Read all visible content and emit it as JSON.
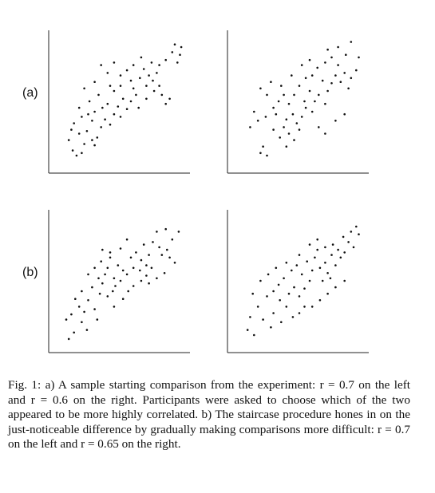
{
  "rows": [
    {
      "label": "(a)"
    },
    {
      "label": "(b)"
    }
  ],
  "caption": "Fig. 1: a) A sample starting comparison from the experiment: r = 0.7 on the left and r = 0.6 on the right. Participants were asked to choose which of the two appeared to be more highly correlated. b) The staircase procedure hones in on the just-noticeable difference by gradually making comparisons more difficult: r = 0.7 on the left and r = 0.65 on the right.",
  "chart_data": [
    {
      "type": "scatter",
      "panel": "(a) left",
      "r": 0.7,
      "xlim": [
        0,
        1
      ],
      "ylim": [
        0,
        1
      ],
      "points": [
        [
          0.13,
          0.12
        ],
        [
          0.16,
          0.08
        ],
        [
          0.2,
          0.1
        ],
        [
          0.22,
          0.17
        ],
        [
          0.28,
          0.2
        ],
        [
          0.3,
          0.16
        ],
        [
          0.18,
          0.25
        ],
        [
          0.24,
          0.27
        ],
        [
          0.32,
          0.22
        ],
        [
          0.35,
          0.3
        ],
        [
          0.14,
          0.33
        ],
        [
          0.2,
          0.38
        ],
        [
          0.28,
          0.35
        ],
        [
          0.38,
          0.36
        ],
        [
          0.42,
          0.32
        ],
        [
          0.45,
          0.4
        ],
        [
          0.3,
          0.42
        ],
        [
          0.36,
          0.45
        ],
        [
          0.4,
          0.48
        ],
        [
          0.48,
          0.46
        ],
        [
          0.5,
          0.38
        ],
        [
          0.52,
          0.52
        ],
        [
          0.55,
          0.44
        ],
        [
          0.58,
          0.5
        ],
        [
          0.26,
          0.5
        ],
        [
          0.33,
          0.55
        ],
        [
          0.22,
          0.6
        ],
        [
          0.45,
          0.58
        ],
        [
          0.5,
          0.62
        ],
        [
          0.6,
          0.6
        ],
        [
          0.62,
          0.55
        ],
        [
          0.65,
          0.68
        ],
        [
          0.7,
          0.62
        ],
        [
          0.72,
          0.7
        ],
        [
          0.68,
          0.75
        ],
        [
          0.75,
          0.66
        ],
        [
          0.78,
          0.72
        ],
        [
          0.8,
          0.62
        ],
        [
          0.82,
          0.55
        ],
        [
          0.85,
          0.48
        ],
        [
          0.88,
          0.52
        ],
        [
          0.6,
          0.78
        ],
        [
          0.66,
          0.84
        ],
        [
          0.74,
          0.8
        ],
        [
          0.8,
          0.78
        ],
        [
          0.85,
          0.82
        ],
        [
          0.9,
          0.88
        ],
        [
          0.94,
          0.8
        ],
        [
          0.96,
          0.86
        ],
        [
          0.92,
          0.94
        ],
        [
          0.97,
          0.92
        ],
        [
          0.4,
          0.72
        ],
        [
          0.5,
          0.7
        ],
        [
          0.35,
          0.78
        ],
        [
          0.45,
          0.8
        ],
        [
          0.55,
          0.74
        ],
        [
          0.3,
          0.65
        ],
        [
          0.42,
          0.62
        ],
        [
          0.58,
          0.66
        ],
        [
          0.64,
          0.45
        ],
        [
          0.7,
          0.52
        ],
        [
          0.76,
          0.58
        ],
        [
          0.18,
          0.45
        ],
        [
          0.25,
          0.4
        ],
        [
          0.1,
          0.2
        ],
        [
          0.12,
          0.28
        ]
      ]
    },
    {
      "type": "scatter",
      "panel": "(a) right",
      "r": 0.6,
      "xlim": [
        0,
        1
      ],
      "ylim": [
        0,
        1
      ],
      "points": [
        [
          0.2,
          0.1
        ],
        [
          0.22,
          0.15
        ],
        [
          0.25,
          0.08
        ],
        [
          0.12,
          0.3
        ],
        [
          0.18,
          0.35
        ],
        [
          0.3,
          0.28
        ],
        [
          0.35,
          0.22
        ],
        [
          0.38,
          0.3
        ],
        [
          0.42,
          0.25
        ],
        [
          0.4,
          0.36
        ],
        [
          0.45,
          0.4
        ],
        [
          0.48,
          0.33
        ],
        [
          0.5,
          0.28
        ],
        [
          0.52,
          0.38
        ],
        [
          0.55,
          0.45
        ],
        [
          0.3,
          0.45
        ],
        [
          0.34,
          0.5
        ],
        [
          0.38,
          0.55
        ],
        [
          0.42,
          0.48
        ],
        [
          0.25,
          0.55
        ],
        [
          0.2,
          0.6
        ],
        [
          0.28,
          0.65
        ],
        [
          0.6,
          0.42
        ],
        [
          0.62,
          0.5
        ],
        [
          0.58,
          0.58
        ],
        [
          0.65,
          0.55
        ],
        [
          0.7,
          0.48
        ],
        [
          0.72,
          0.58
        ],
        [
          0.75,
          0.64
        ],
        [
          0.68,
          0.66
        ],
        [
          0.6,
          0.7
        ],
        [
          0.55,
          0.68
        ],
        [
          0.5,
          0.62
        ],
        [
          0.78,
          0.7
        ],
        [
          0.82,
          0.65
        ],
        [
          0.85,
          0.72
        ],
        [
          0.88,
          0.6
        ],
        [
          0.9,
          0.68
        ],
        [
          0.94,
          0.74
        ],
        [
          0.8,
          0.78
        ],
        [
          0.75,
          0.84
        ],
        [
          0.7,
          0.8
        ],
        [
          0.72,
          0.9
        ],
        [
          0.8,
          0.92
        ],
        [
          0.86,
          0.86
        ],
        [
          0.9,
          0.96
        ],
        [
          0.96,
          0.84
        ],
        [
          0.65,
          0.3
        ],
        [
          0.7,
          0.25
        ],
        [
          0.78,
          0.35
        ],
        [
          0.85,
          0.4
        ],
        [
          0.46,
          0.2
        ],
        [
          0.4,
          0.15
        ],
        [
          0.32,
          0.4
        ],
        [
          0.36,
          0.62
        ],
        [
          0.44,
          0.7
        ],
        [
          0.52,
          0.78
        ],
        [
          0.58,
          0.82
        ],
        [
          0.64,
          0.76
        ],
        [
          0.15,
          0.42
        ],
        [
          0.24,
          0.38
        ],
        [
          0.46,
          0.55
        ],
        [
          0.54,
          0.5
        ]
      ]
    },
    {
      "type": "scatter",
      "panel": "(b) left",
      "r": 0.7,
      "xlim": [
        0,
        1
      ],
      "ylim": [
        0,
        1
      ],
      "points": [
        [
          0.1,
          0.05
        ],
        [
          0.14,
          0.1
        ],
        [
          0.08,
          0.2
        ],
        [
          0.12,
          0.24
        ],
        [
          0.2,
          0.18
        ],
        [
          0.24,
          0.12
        ],
        [
          0.18,
          0.3
        ],
        [
          0.25,
          0.35
        ],
        [
          0.3,
          0.28
        ],
        [
          0.34,
          0.4
        ],
        [
          0.2,
          0.42
        ],
        [
          0.28,
          0.45
        ],
        [
          0.36,
          0.48
        ],
        [
          0.4,
          0.38
        ],
        [
          0.44,
          0.42
        ],
        [
          0.38,
          0.55
        ],
        [
          0.45,
          0.52
        ],
        [
          0.5,
          0.5
        ],
        [
          0.52,
          0.58
        ],
        [
          0.48,
          0.62
        ],
        [
          0.55,
          0.55
        ],
        [
          0.6,
          0.6
        ],
        [
          0.3,
          0.6
        ],
        [
          0.35,
          0.65
        ],
        [
          0.42,
          0.68
        ],
        [
          0.25,
          0.55
        ],
        [
          0.58,
          0.68
        ],
        [
          0.62,
          0.72
        ],
        [
          0.66,
          0.66
        ],
        [
          0.7,
          0.62
        ],
        [
          0.72,
          0.7
        ],
        [
          0.74,
          0.6
        ],
        [
          0.68,
          0.78
        ],
        [
          0.75,
          0.8
        ],
        [
          0.8,
          0.76
        ],
        [
          0.82,
          0.7
        ],
        [
          0.86,
          0.74
        ],
        [
          0.88,
          0.68
        ],
        [
          0.92,
          0.64
        ],
        [
          0.9,
          0.82
        ],
        [
          0.95,
          0.88
        ],
        [
          0.85,
          0.9
        ],
        [
          0.78,
          0.88
        ],
        [
          0.55,
          0.82
        ],
        [
          0.5,
          0.75
        ],
        [
          0.6,
          0.46
        ],
        [
          0.66,
          0.5
        ],
        [
          0.72,
          0.48
        ],
        [
          0.78,
          0.52
        ],
        [
          0.84,
          0.56
        ],
        [
          0.45,
          0.3
        ],
        [
          0.52,
          0.36
        ],
        [
          0.56,
          0.42
        ],
        [
          0.4,
          0.6
        ],
        [
          0.33,
          0.52
        ],
        [
          0.15,
          0.36
        ],
        [
          0.22,
          0.26
        ],
        [
          0.32,
          0.2
        ],
        [
          0.65,
          0.58
        ],
        [
          0.7,
          0.54
        ],
        [
          0.46,
          0.46
        ],
        [
          0.42,
          0.72
        ],
        [
          0.36,
          0.74
        ]
      ]
    },
    {
      "type": "scatter",
      "panel": "(b) right",
      "r": 0.65,
      "xlim": [
        0,
        1
      ],
      "ylim": [
        0,
        1
      ],
      "points": [
        [
          0.1,
          0.12
        ],
        [
          0.15,
          0.08
        ],
        [
          0.22,
          0.2
        ],
        [
          0.28,
          0.14
        ],
        [
          0.3,
          0.25
        ],
        [
          0.36,
          0.18
        ],
        [
          0.4,
          0.3
        ],
        [
          0.18,
          0.3
        ],
        [
          0.25,
          0.38
        ],
        [
          0.3,
          0.42
        ],
        [
          0.35,
          0.35
        ],
        [
          0.42,
          0.4
        ],
        [
          0.46,
          0.45
        ],
        [
          0.5,
          0.38
        ],
        [
          0.54,
          0.44
        ],
        [
          0.2,
          0.5
        ],
        [
          0.26,
          0.55
        ],
        [
          0.32,
          0.6
        ],
        [
          0.38,
          0.52
        ],
        [
          0.44,
          0.58
        ],
        [
          0.48,
          0.62
        ],
        [
          0.52,
          0.55
        ],
        [
          0.58,
          0.5
        ],
        [
          0.6,
          0.58
        ],
        [
          0.56,
          0.65
        ],
        [
          0.62,
          0.68
        ],
        [
          0.66,
          0.6
        ],
        [
          0.7,
          0.64
        ],
        [
          0.72,
          0.56
        ],
        [
          0.75,
          0.7
        ],
        [
          0.78,
          0.62
        ],
        [
          0.8,
          0.74
        ],
        [
          0.76,
          0.78
        ],
        [
          0.7,
          0.76
        ],
        [
          0.64,
          0.74
        ],
        [
          0.82,
          0.68
        ],
        [
          0.85,
          0.72
        ],
        [
          0.88,
          0.8
        ],
        [
          0.84,
          0.84
        ],
        [
          0.9,
          0.88
        ],
        [
          0.94,
          0.92
        ],
        [
          0.96,
          0.86
        ],
        [
          0.92,
          0.76
        ],
        [
          0.6,
          0.3
        ],
        [
          0.66,
          0.35
        ],
        [
          0.72,
          0.4
        ],
        [
          0.78,
          0.45
        ],
        [
          0.85,
          0.5
        ],
        [
          0.5,
          0.25
        ],
        [
          0.45,
          0.22
        ],
        [
          0.54,
          0.3
        ],
        [
          0.64,
          0.82
        ],
        [
          0.58,
          0.78
        ],
        [
          0.14,
          0.4
        ],
        [
          0.12,
          0.22
        ],
        [
          0.34,
          0.47
        ],
        [
          0.4,
          0.64
        ],
        [
          0.68,
          0.5
        ],
        [
          0.74,
          0.52
        ],
        [
          0.5,
          0.7
        ]
      ]
    }
  ]
}
